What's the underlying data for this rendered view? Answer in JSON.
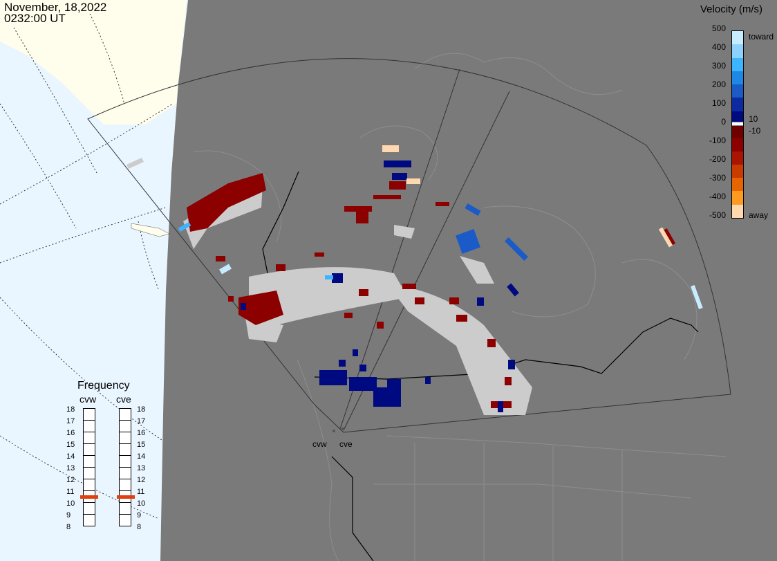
{
  "header": {
    "date": "November, 18,2022",
    "time": "0232:00 UT"
  },
  "velocity_scale": {
    "title": "Velocity (m/s)",
    "ticks": [
      "500",
      "400",
      "300",
      "200",
      "100",
      "0",
      "-100",
      "-200",
      "-300",
      "-400",
      "-500"
    ],
    "label_toward": "toward",
    "label_away": "away",
    "label_pos": "10",
    "label_neg": "-10",
    "colors": [
      "#c8ecff",
      "#8cd2ff",
      "#3cb4ff",
      "#1e88e5",
      "#1a5bc8",
      "#0d2aa0",
      "#000a80",
      "#6e0000",
      "#8c0000",
      "#aa1400",
      "#c83c00",
      "#e86400",
      "#ff9a20",
      "#ffd8b0"
    ]
  },
  "frequency": {
    "title": "Frequency",
    "radars": [
      "cvw",
      "cve"
    ],
    "levels": [
      "18",
      "17",
      "16",
      "15",
      "14",
      "13",
      "12",
      "11",
      "10",
      "9",
      "8"
    ],
    "cvw_mhz": 10.7,
    "cve_mhz": 10.7,
    "marker_color": "#e04010"
  },
  "radar_labels": {
    "west": "cvw",
    "east": "cve"
  },
  "map_colors": {
    "land": "#7a7a7a",
    "ocean": "#eaf6ff",
    "night_ocean": "#fffef0",
    "ground_scatter": "#cccccc"
  }
}
